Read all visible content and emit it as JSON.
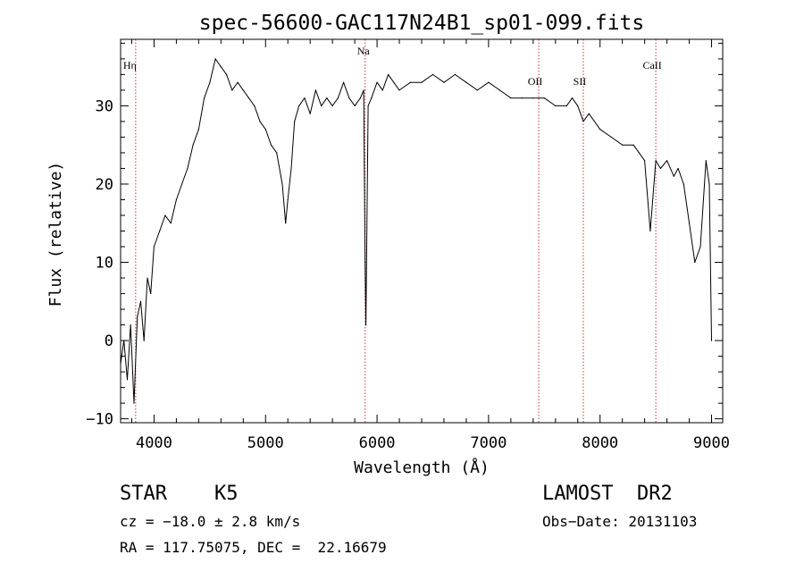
{
  "chart_data": {
    "type": "line",
    "title": "spec-56600-GAC117N24B1_sp01-099.fits",
    "xlabel": "Wavelength (Å)",
    "ylabel": "Flux (relative)",
    "xlim": [
      3700,
      9100
    ],
    "ylim": [
      -10.5,
      38.5
    ],
    "xticks": [
      4000,
      5000,
      6000,
      7000,
      8000,
      9000
    ],
    "yticks": [
      -10,
      0,
      10,
      20,
      30
    ],
    "grid": false,
    "colors": {
      "spectrum": "#000000",
      "lines": "#cc3333"
    },
    "line_markers": [
      {
        "label": "Hη",
        "wavelength": 3835
      },
      {
        "label": "Na",
        "wavelength": 5893
      },
      {
        "label": "OII",
        "wavelength": 7450
      },
      {
        "label": "SII",
        "wavelength": 7850
      },
      {
        "label": "CaII",
        "wavelength": 8500
      }
    ],
    "series": [
      {
        "x": [
          3700,
          3730,
          3760,
          3790,
          3820,
          3850,
          3880,
          3910,
          3940,
          3970,
          4000,
          4050,
          4100,
          4150,
          4200,
          4250,
          4300,
          4350,
          4400,
          4450,
          4500,
          4550,
          4600,
          4650,
          4700,
          4750,
          4800,
          4850,
          4900,
          4950,
          5000,
          5050,
          5100,
          5150,
          5180,
          5200,
          5230,
          5260,
          5300,
          5350,
          5400,
          5450,
          5500,
          5550,
          5600,
          5650,
          5700,
          5750,
          5800,
          5850,
          5880,
          5893,
          5900,
          5920,
          5950,
          6000,
          6050,
          6100,
          6150,
          6200,
          6300,
          6400,
          6500,
          6600,
          6700,
          6800,
          6900,
          7000,
          7100,
          7200,
          7300,
          7400,
          7500,
          7600,
          7700,
          7750,
          7800,
          7850,
          7900,
          8000,
          8100,
          8200,
          8300,
          8350,
          8400,
          8450,
          8500,
          8542,
          8600,
          8662,
          8700,
          8750,
          8800,
          8850,
          8900,
          8950,
          8980,
          9000
        ],
        "y": [
          -3,
          0,
          -5,
          2,
          -8,
          3,
          5,
          0,
          8,
          6,
          12,
          14,
          16,
          15,
          18,
          20,
          22,
          25,
          27,
          31,
          33,
          36,
          35,
          34,
          32,
          33,
          32,
          31,
          30,
          28,
          27,
          25,
          24,
          20,
          15,
          18,
          22,
          28,
          30,
          31,
          29,
          32,
          30,
          31,
          30,
          31,
          33,
          31,
          30,
          31,
          32,
          10,
          2,
          30,
          31,
          33,
          32,
          34,
          33,
          32,
          33,
          33,
          34,
          33,
          34,
          33,
          32,
          33,
          32,
          31,
          31,
          31,
          31,
          30,
          30,
          31,
          30,
          28,
          29,
          27,
          26,
          25,
          25,
          24,
          23,
          14,
          23,
          22,
          23,
          21,
          22,
          20,
          15,
          10,
          12,
          23,
          20,
          0
        ]
      }
    ]
  },
  "footer": {
    "object": "STAR    K5",
    "survey": "LAMOST  DR2",
    "cz": "cz = −18.0 ± 2.8 km/s",
    "obs_date": "Obs−Date: 20131103",
    "coords": "RA = 117.75075, DEC =  22.16679"
  }
}
